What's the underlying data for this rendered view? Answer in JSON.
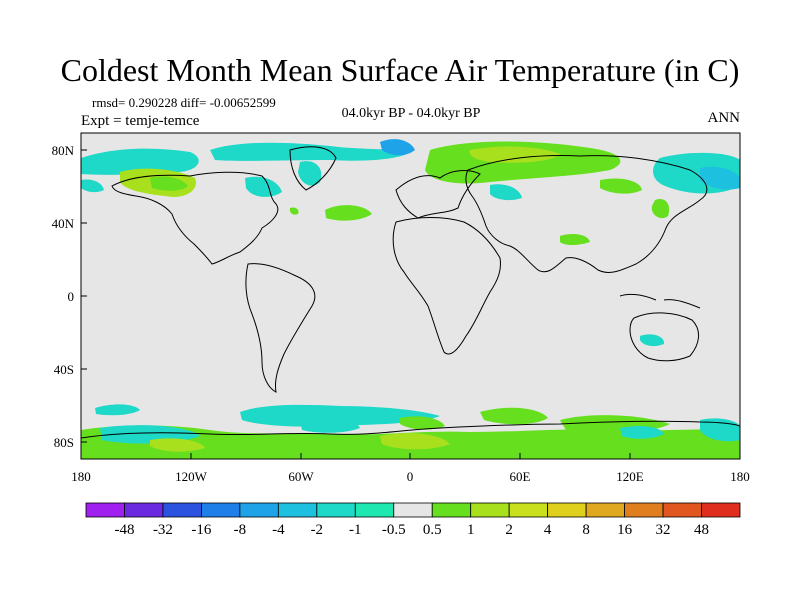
{
  "title": "Coldest Month Mean Surface Air Temperature (in C)",
  "stats": "rmsd= 0.290228  diff= -0.00652599",
  "expt": "Expt = temje-temce",
  "period": "04.0kyr BP - 04.0kyr BP",
  "season": "ANN",
  "lon_ticks": [
    "180",
    "120W",
    "60W",
    "0",
    "60E",
    "120E",
    "180"
  ],
  "lat_ticks": [
    "80N",
    "40N",
    "0",
    "40S",
    "80S"
  ],
  "colorbar": {
    "colors": [
      "#a020f0",
      "#6a2be0",
      "#2b53e0",
      "#1e7fe8",
      "#1ea2e8",
      "#1ec0e0",
      "#1ed8c8",
      "#1ee8b0",
      "#e6e6e6",
      "#66e01e",
      "#a8e01e",
      "#c8e01e",
      "#e0d01e",
      "#e0a81e",
      "#e07e1e",
      "#e0561e",
      "#e02e1e"
    ],
    "labels": [
      "-48",
      "-32",
      "-16",
      "-8",
      "-4",
      "-2",
      "-1",
      "-0.5",
      "0.5",
      "1",
      "2",
      "4",
      "8",
      "16",
      "32",
      "48"
    ]
  }
}
